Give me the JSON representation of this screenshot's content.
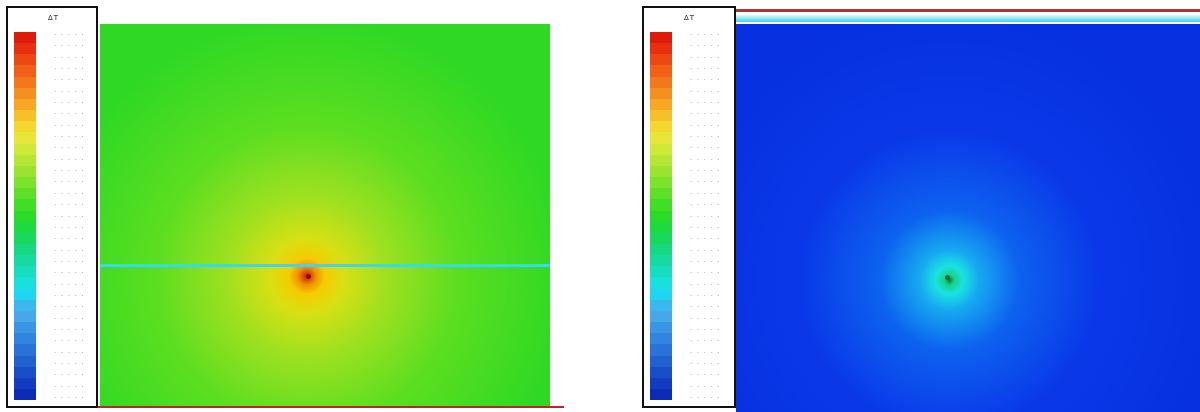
{
  "legend": {
    "title": "ΔT",
    "colors": [
      "#e01a0a",
      "#e83010",
      "#ec4814",
      "#f06018",
      "#f2781c",
      "#f49020",
      "#f6a824",
      "#f6c028",
      "#f4d830",
      "#e8e638",
      "#d0e838",
      "#b6e634",
      "#9ae430",
      "#7ce22c",
      "#5ee028",
      "#40de24",
      "#28dc28",
      "#1cda40",
      "#18d860",
      "#16d880",
      "#16daa0",
      "#16dcc0",
      "#18e0dc",
      "#1ed6f0",
      "#3ab8ee",
      "#46a8ea",
      "#3a96e4",
      "#3284de",
      "#2a72d8",
      "#2260d0",
      "#1a4ec8",
      "#143cc0",
      "#0e2ab8"
    ],
    "labels": [
      "- - - - -",
      "- - - - -",
      "- - - - -",
      "- - - - -",
      "- - - - -",
      "- - - - -",
      "- - - - -",
      "- - - - -",
      "- - - - -",
      "- - - - -",
      "- - - - -",
      "- - - - -",
      "- - - - -",
      "- - - - -",
      "- - - - -",
      "- - - - -",
      "- - - - -",
      "- - - - -",
      "- - - - -",
      "- - - - -",
      "- - - - -",
      "- - - - -",
      "- - - - -",
      "- - - - -",
      "- - - - -",
      "- - - - -",
      "- - - - -",
      "- - - - -",
      "- - - - -",
      "- - - - -",
      "- - - - -",
      "- - - - -",
      "- - - - -"
    ]
  },
  "panels": [
    {
      "field_color": "green",
      "source_color": "#8a0000"
    },
    {
      "field_color": "blue",
      "source_color": "#0f6a2f"
    }
  ]
}
